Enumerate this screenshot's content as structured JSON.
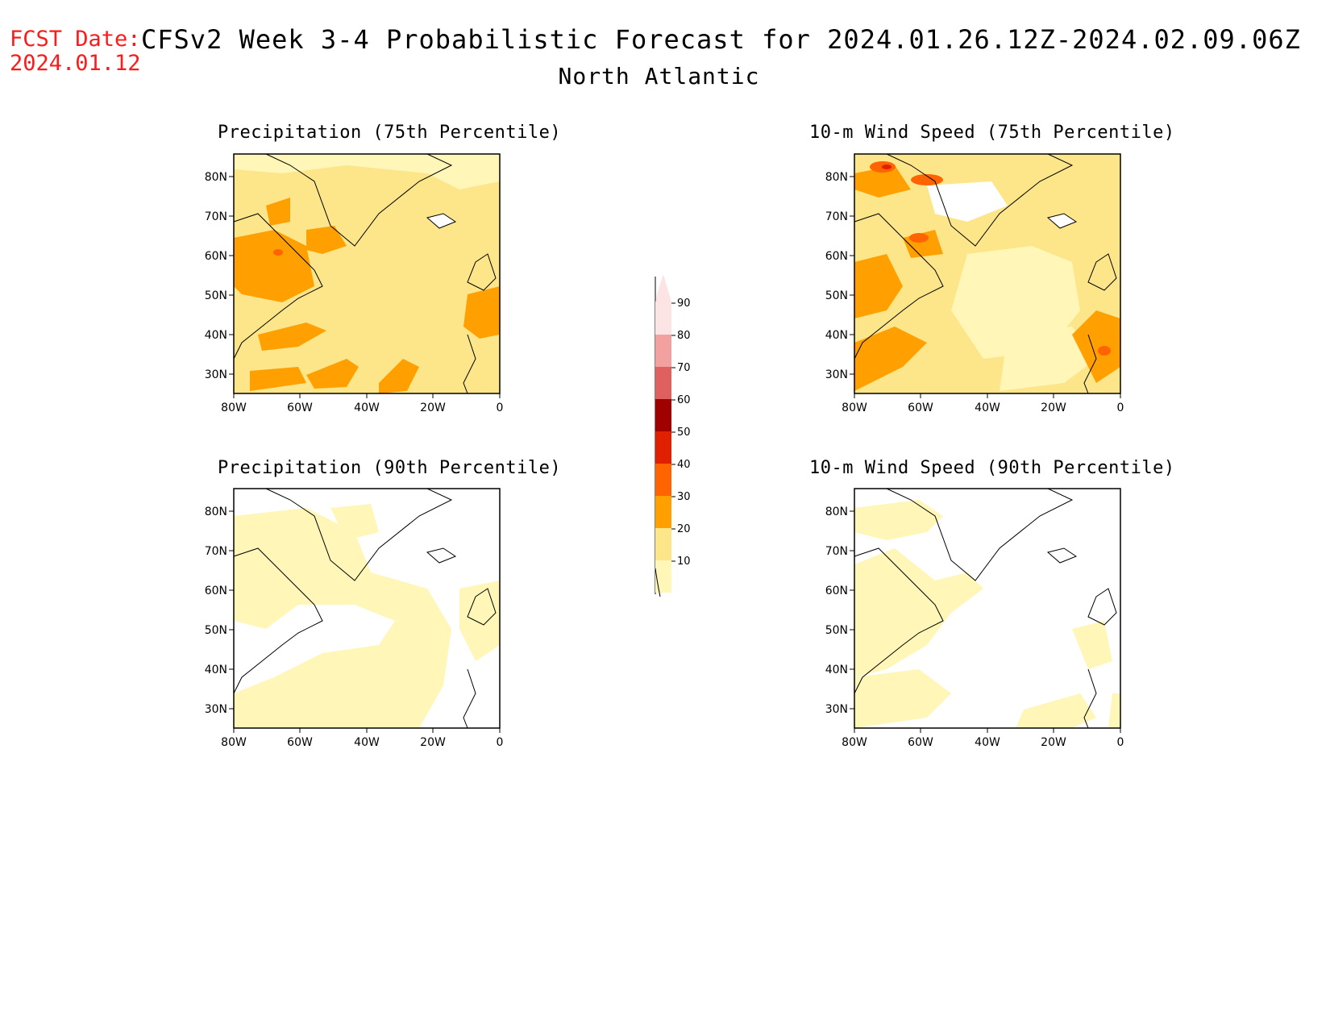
{
  "header": {
    "fcst_label": "FCST Date:",
    "fcst_date": "2024.01.12",
    "title": "CFSv2 Week 3-4 Probabilistic Forecast for 2024.01.26.12Z-2024.02.09.06Z",
    "region": "North Atlantic"
  },
  "panels": [
    {
      "title": "Precipitation (75th Percentile)"
    },
    {
      "title": "10-m Wind Speed (75th Percentile)"
    },
    {
      "title": "Precipitation (90th Percentile)"
    },
    {
      "title": "10-m Wind Speed (90th Percentile)"
    }
  ],
  "axes": {
    "lat_labels": [
      "80N",
      "70N",
      "60N",
      "50N",
      "40N",
      "30N"
    ],
    "lon_labels": [
      "80W",
      "60W",
      "40W",
      "20W",
      "0"
    ]
  },
  "colorbar": {
    "levels": [
      "90",
      "80",
      "70",
      "60",
      "50",
      "40",
      "30",
      "20",
      "10"
    ],
    "colors": [
      "#fce4e4",
      "#f2a0a0",
      "#e06060",
      "#a00000",
      "#e02000",
      "#ff6400",
      "#ffa000",
      "#fde68a",
      "#fff6b8"
    ]
  }
}
